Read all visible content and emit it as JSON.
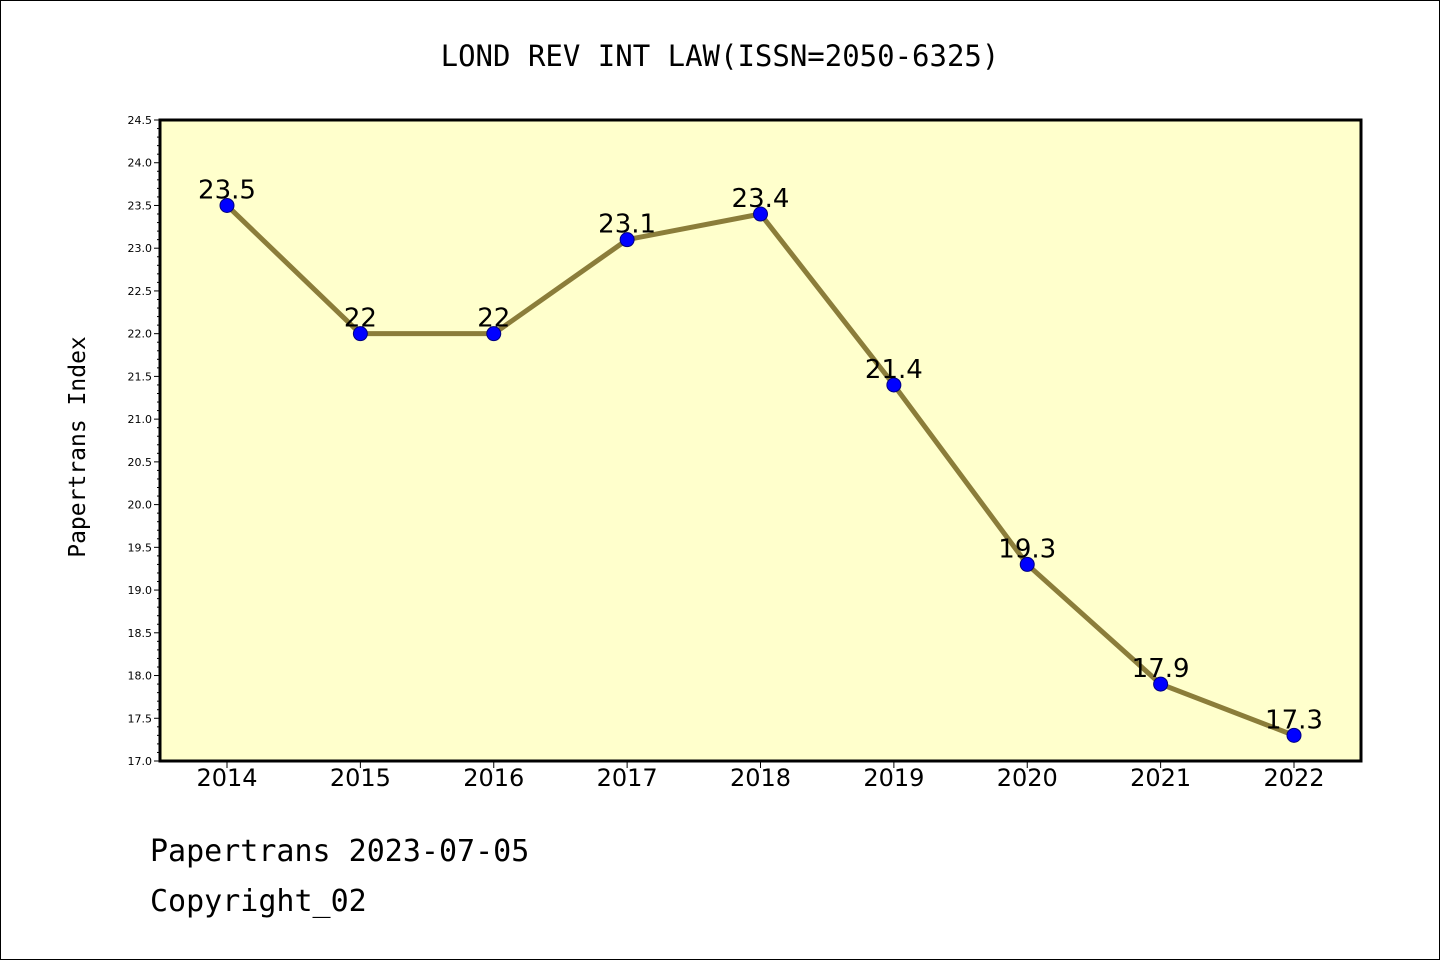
{
  "chart_data": {
    "type": "line",
    "title": "LOND REV INT LAW(ISSN=2050-6325)",
    "xlabel": "",
    "ylabel": "Papertrans Index",
    "categories": [
      "2014",
      "2015",
      "2016",
      "2017",
      "2018",
      "2019",
      "2020",
      "2021",
      "2022"
    ],
    "values": [
      23.5,
      22,
      22,
      23.1,
      23.4,
      21.4,
      19.3,
      17.9,
      17.3
    ],
    "point_labels": [
      "23.5",
      "22",
      "22",
      "23.1",
      "23.4",
      "21.4",
      "19.3",
      "17.9",
      "17.3"
    ],
    "ylim": [
      17.0,
      24.5
    ],
    "yticks": [
      "17.0",
      "17.5",
      "18.0",
      "18.5",
      "19.0",
      "19.5",
      "20.0",
      "20.5",
      "21.0",
      "21.5",
      "22.0",
      "22.5",
      "23.0",
      "23.5",
      "24.0",
      "24.5"
    ],
    "grid": false,
    "legend": "none",
    "colors": {
      "plot_background": "#ffffcc",
      "line": "#8b7d3a",
      "marker": "#0000ff",
      "marker_edge": "#000080"
    }
  },
  "footer": {
    "line1": "Papertrans 2023-07-05",
    "line2": "Copyright_02"
  }
}
